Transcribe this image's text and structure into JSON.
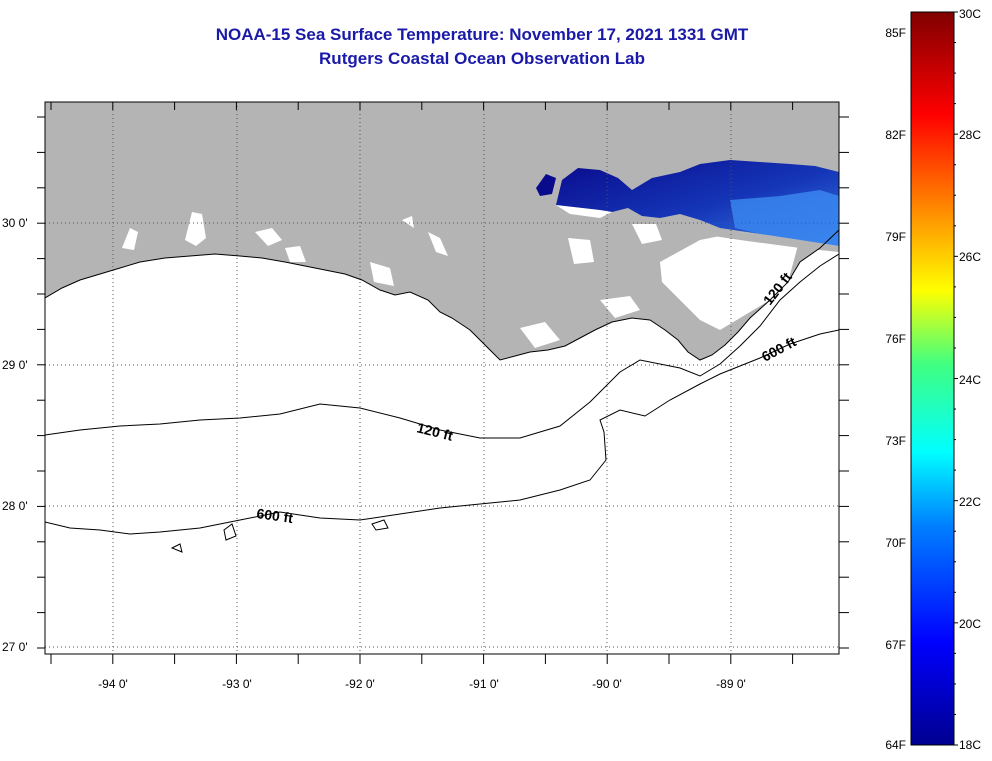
{
  "title": "NOAA-15 Sea Surface Temperature:  November 17, 2021 1331 GMT",
  "subtitle": "Rutgers Coastal Ocean Observation Lab",
  "lat_labels": [
    "30 0'",
    "29 0'",
    "28 0'",
    "27 0'"
  ],
  "lon_labels": [
    "-94 0'",
    "-93 0'",
    "-92 0'",
    "-91 0'",
    "-90 0'",
    "-89 0'"
  ],
  "contours": {
    "c120_a": "120 ft",
    "c120_b": "120 ft",
    "c600_a": "600 ft",
    "c600_b": "600 ft"
  },
  "colorbar": {
    "f_labels": [
      "85F",
      "82F",
      "79F",
      "76F",
      "73F",
      "70F",
      "67F",
      "64F"
    ],
    "c_labels": [
      "30C",
      "28C",
      "26C",
      "24C",
      "22C",
      "20C",
      "18C"
    ],
    "min_c": 18,
    "max_c": 30
  },
  "colors": {
    "land": "#b4b4b4",
    "ocean": "#ffffff",
    "title": "#1a1aa8",
    "sst_cold": "#0a0a8c",
    "sst_warm": "#2a60d8"
  }
}
